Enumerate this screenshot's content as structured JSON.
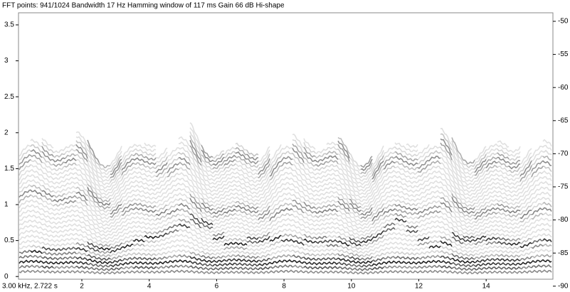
{
  "header": {
    "text": "FFT points: 941/1024  Bandwidth 17 Hz  Hamming window of 117 ms  Gain 66 dB  Hi-shape"
  },
  "left_axis": {
    "ticks": [
      "3.5",
      "3",
      "2.5",
      "2",
      "1.5",
      "1",
      "0.5",
      "0"
    ]
  },
  "right_axis": {
    "ticks": [
      "-50",
      "-55",
      "-60",
      "-65",
      "-70",
      "-75",
      "-80",
      "-85",
      "-90"
    ]
  },
  "bottom_axis": {
    "status": "3.00 kHz,   2.722 s",
    "ticks": [
      "2",
      "4",
      "6",
      "8",
      "10",
      "12",
      "14"
    ]
  }
}
